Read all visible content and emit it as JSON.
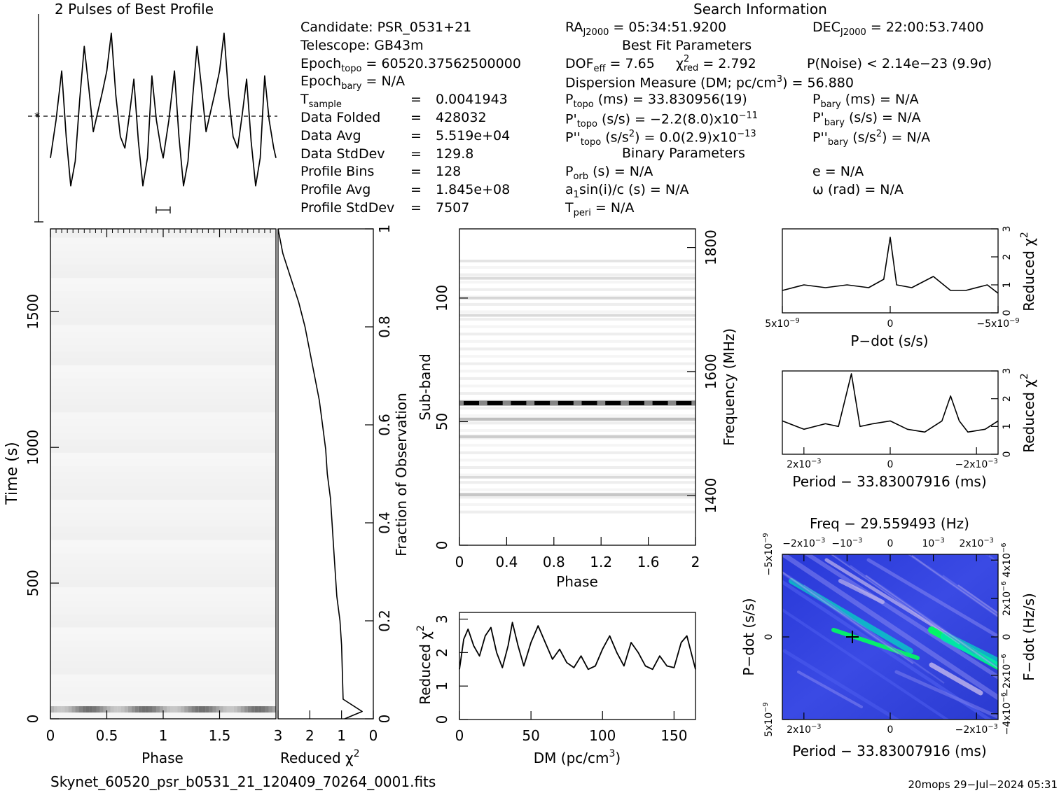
{
  "profile": {
    "title": "2 Pulses of Best Profile",
    "chart_data": {
      "type": "line",
      "title": "2 Pulses of Best Profile",
      "x": [
        0,
        0.05,
        0.1,
        0.14,
        0.18,
        0.22,
        0.26,
        0.3,
        0.34,
        0.38,
        0.42,
        0.46,
        0.5,
        0.54,
        0.58,
        0.62,
        0.66,
        0.7,
        0.74,
        0.78,
        0.82,
        0.86,
        0.9,
        0.94,
        0.98,
        1.0,
        1.05,
        1.1,
        1.14,
        1.18,
        1.22,
        1.26,
        1.3,
        1.34,
        1.38,
        1.42,
        1.46,
        1.5,
        1.54,
        1.58,
        1.62,
        1.66,
        1.7,
        1.74,
        1.78,
        1.82,
        1.86,
        1.9,
        1.94,
        1.98,
        2.0
      ],
      "values": [
        0.22,
        0.45,
        0.75,
        0.35,
        0.05,
        0.2,
        0.58,
        0.9,
        0.65,
        0.38,
        0.5,
        0.62,
        0.75,
        0.98,
        0.6,
        0.35,
        0.28,
        0.48,
        0.7,
        0.32,
        0.05,
        0.22,
        0.72,
        0.45,
        0.28,
        0.22,
        0.45,
        0.75,
        0.35,
        0.05,
        0.2,
        0.58,
        0.9,
        0.65,
        0.38,
        0.5,
        0.62,
        0.75,
        0.98,
        0.6,
        0.35,
        0.28,
        0.48,
        0.7,
        0.32,
        0.05,
        0.22,
        0.72,
        0.45,
        0.28,
        0.22
      ],
      "ylabel": "",
      "xlim": [
        0,
        2
      ]
    }
  },
  "info": {
    "candidate": "Candidate:   PSR_0531+21",
    "telescope": "Telescope:   GB43m",
    "epoch_topo_label": "Epoch",
    "epoch_topo_sub": "topo",
    "epoch_topo_val": " = 60520.37562500000",
    "epoch_bary_label": "Epoch",
    "epoch_bary_sub": "bary",
    "epoch_bary_val": " = N/A",
    "tsample_label": "T",
    "tsample_sub": "sample",
    "tsample_eq": "=",
    "tsample_val": "0.0041943",
    "rows": [
      {
        "label": "Data Folded",
        "eq": "=",
        "val": "428032"
      },
      {
        "label": "Data Avg",
        "eq": "=",
        "val": "5.519e+04"
      },
      {
        "label": "Data StdDev",
        "eq": "=",
        "val": "129.8"
      },
      {
        "label": "Profile Bins",
        "eq": "=",
        "val": "128"
      },
      {
        "label": "Profile Avg",
        "eq": "=",
        "val": "1.845e+08"
      },
      {
        "label": "Profile StdDev",
        "eq": "=",
        "val": "7507"
      }
    ]
  },
  "search": {
    "title": "Search Information",
    "ra_label": "RA",
    "ra_sub": "J2000",
    "ra_val": " = 05:34:51.9200",
    "dec_label": "DEC",
    "dec_sub": "J2000",
    "dec_val": " = 22:00:53.7400",
    "best_fit_title": "Best Fit Parameters",
    "dof_label": "DOF",
    "dof_sub": "eff",
    "dof_val": " = 7.65",
    "chi_label": "χ",
    "chi_sup": "2",
    "chi_sub": "red",
    "chi_val": " = 2.792",
    "pnoise": "P(Noise) < 2.14e−23   (9.9σ)",
    "dm_line": "Dispersion Measure (DM; pc/cm",
    "dm_sup": "3",
    "dm_val": ") = 56.880",
    "ptopo_label": "P",
    "ptopo_sub": "topo",
    "ptopo_val": " (ms) =  33.830956(19)",
    "pbary_label": "P",
    "pbary_sub": "bary",
    "pbary_val": " (ms) = N/A",
    "pdtopo_label": "P'",
    "pdtopo_sub": "topo",
    "pdtopo_val": " (s/s) = −2.2(8.0)x10",
    "pdtopo_exp": "−11",
    "pdbary_label": "P'",
    "pdbary_sub": "bary",
    "pdbary_val": " (s/s) = N/A",
    "pddtopo_label": "P''",
    "pddtopo_sub": "topo",
    "pddtopo_val": " (s/s",
    "pddtopo_sup": "2",
    "pddtopo_val2": ") = 0.0(2.9)x10",
    "pddtopo_exp": "−13",
    "pddbary_label": "P''",
    "pddbary_sub": "bary",
    "pddbary_val": " (s/s",
    "pddbary_sup": "2",
    "pddbary_val2": ") = N/A",
    "binary_title": "Binary Parameters",
    "porb_label": "P",
    "porb_sub": "orb",
    "porb_val": " (s) = N/A",
    "e_line": "e = N/A",
    "a1_label": "a",
    "a1_sub": "1",
    "a1_val": "sin(i)/c (s) = N/A",
    "omega_line": "ω (rad) = N/A",
    "tperi_label": "T",
    "tperi_sub": "peri",
    "tperi_val": " = N/A"
  },
  "time_phase": {
    "xlabel": "Phase",
    "ylabel": "Time (s)",
    "xticks": [
      "0",
      "0.5",
      "1",
      "1.5"
    ],
    "yticks": [
      "0",
      "500",
      "1000",
      "1500"
    ],
    "chart_data": {
      "type": "heatmap",
      "xlabel": "Phase",
      "ylabel": "Time (s)",
      "xlim": [
        0,
        2
      ],
      "ylim": [
        0,
        1805
      ]
    }
  },
  "time_chi": {
    "xlabel": "Reduced χ",
    "xlabel_sup": "2",
    "ylabel": "Fraction of Observation",
    "xticks": [
      "3",
      "2",
      "1",
      "0"
    ],
    "yticks": [
      "0",
      "0.2",
      "0.4",
      "0.6",
      "0.8",
      "1"
    ],
    "chart_data": {
      "type": "line",
      "xlabel": "Reduced χ2",
      "ylabel": "Fraction of Observation",
      "xlim": [
        3,
        0
      ],
      "ylim": [
        0,
        1
      ],
      "x": [
        3.0,
        2.85,
        2.6,
        2.35,
        2.15,
        2.0,
        1.85,
        1.7,
        1.6,
        1.5,
        1.45,
        1.35,
        1.3,
        1.25,
        1.2,
        1.15,
        1.05,
        1.0,
        0.95,
        0.35,
        0.9
      ],
      "y": [
        1.0,
        0.95,
        0.9,
        0.85,
        0.8,
        0.75,
        0.7,
        0.65,
        0.6,
        0.55,
        0.5,
        0.45,
        0.4,
        0.35,
        0.3,
        0.25,
        0.2,
        0.15,
        0.04,
        0.015,
        0.0
      ]
    }
  },
  "subband": {
    "xlabel": "Phase",
    "ylabel": "Sub-band",
    "y2label": "Frequency (MHz)",
    "xticks": [
      "0",
      "0.4",
      "0.8",
      "1.2",
      "1.6",
      "2"
    ],
    "yticks": [
      "0",
      "50",
      "100"
    ],
    "y2ticks": [
      "1400",
      "1600",
      "1800"
    ],
    "chart_data": {
      "type": "heatmap",
      "xlabel": "Phase",
      "ylabel": "Sub-band",
      "xlim": [
        0,
        2
      ],
      "ylim": [
        0,
        128
      ],
      "y2lim": [
        1320,
        1830
      ]
    }
  },
  "dm": {
    "xlabel": "DM (pc/cm",
    "xlabel_sup": "3",
    "xlabel_end": ")",
    "ylabel": "Reduced χ",
    "ylabel_sup": "2",
    "xticks": [
      "0",
      "50",
      "100",
      "150"
    ],
    "yticks": [
      "0",
      "1",
      "2",
      "3"
    ],
    "chart_data": {
      "type": "line",
      "xlabel": "DM (pc/cm3)",
      "ylabel": "Reduced χ2",
      "xlim": [
        0,
        165
      ],
      "ylim": [
        0,
        3.2
      ],
      "x": [
        0,
        3,
        6,
        10,
        14,
        18,
        22,
        26,
        30,
        34,
        37,
        41,
        45,
        50,
        55,
        60,
        65,
        70,
        75,
        80,
        85,
        90,
        95,
        100,
        105,
        110,
        115,
        120,
        125,
        130,
        135,
        140,
        145,
        150,
        155,
        159,
        165
      ],
      "y": [
        1.5,
        2.4,
        2.7,
        2.2,
        1.9,
        2.5,
        2.75,
        2.0,
        1.55,
        2.2,
        2.9,
        2.2,
        1.6,
        2.3,
        2.8,
        2.3,
        1.8,
        2.1,
        1.7,
        1.55,
        1.9,
        1.5,
        1.6,
        2.1,
        2.5,
        2.0,
        1.6,
        2.3,
        2.0,
        1.6,
        1.5,
        1.9,
        1.6,
        1.55,
        2.3,
        2.5,
        1.5
      ]
    }
  },
  "pdot_chi": {
    "xlabel": "P−dot (s/s)",
    "ylabel": "Reduced χ",
    "ylabel_sup": "2",
    "xticks": [
      "5x10",
      "0",
      "−5x10"
    ],
    "xtick_exp": "−9",
    "yticks": [
      "0",
      "1",
      "2",
      "3"
    ],
    "chart_data": {
      "type": "line",
      "xlabel": "P−dot (s/s)",
      "ylabel": "Reduced χ2",
      "xlim": [
        5e-09,
        -5e-09
      ],
      "ylim": [
        0,
        3
      ],
      "x": [
        5e-09,
        4e-09,
        3e-09,
        2e-09,
        1e-09,
        3e-10,
        0,
        -3e-10,
        -1e-09,
        -2e-09,
        -2.8e-09,
        -3.5e-09,
        -4.5e-09,
        -5e-09
      ],
      "y": [
        0.8,
        1.0,
        0.9,
        1.0,
        0.9,
        1.2,
        2.7,
        1.0,
        0.9,
        1.3,
        0.8,
        0.8,
        1.0,
        0.7
      ]
    }
  },
  "period_chi": {
    "xlabel": "Period − 33.83007916 (ms)",
    "ylabel": "Reduced χ",
    "ylabel_sup": "2",
    "xticks": [
      "2x10",
      "0",
      "−2x10"
    ],
    "xtick_exp": "−3",
    "yticks": [
      "0",
      "1",
      "2",
      "3"
    ],
    "chart_data": {
      "type": "line",
      "xlabel": "Period − 33.83007916 (ms)",
      "ylabel": "Reduced χ2",
      "xlim": [
        0.0025,
        -0.0025
      ],
      "ylim": [
        0,
        3
      ],
      "x": [
        0.0025,
        0.002,
        0.0015,
        0.0012,
        0.0009,
        0.0007,
        0.0004,
        0,
        -0.0004,
        -0.0008,
        -0.0012,
        -0.0014,
        -0.0016,
        -0.0018,
        -0.0022,
        -0.0025
      ],
      "y": [
        1.2,
        0.9,
        1.1,
        1.0,
        2.9,
        1.0,
        1.1,
        1.2,
        0.9,
        0.8,
        1.2,
        2.1,
        1.2,
        0.8,
        0.9,
        1.2
      ]
    }
  },
  "ppdot": {
    "title": "Freq − 29.559493 (Hz)",
    "xlabel": "Period − 33.83007916 (ms)",
    "ylabel": "P−dot (s/s)",
    "y2label": "F−dot (Hz/s)",
    "xticks": [
      "2x10",
      "0",
      "−2x10"
    ],
    "xtick_exp": "−3",
    "topticks": [
      "−2x10",
      "−10",
      "0",
      "10",
      "2x10"
    ],
    "topticks_exp": [
      "−3",
      "−3",
      "",
      "−3",
      "−3"
    ],
    "yticks": [
      "5x10",
      "0",
      "−5x10"
    ],
    "ytick_exp": "−9",
    "y2ticks": [
      "−4x10",
      "−2x10",
      "0",
      "2x10",
      "4x10"
    ],
    "y2tick_exp": "−6",
    "chart_data": {
      "type": "heatmap",
      "xlabel": "Period − 33.83007916 (ms)",
      "ylabel": "P−dot (s/s)",
      "xlim": [
        0.0025,
        -0.0025
      ],
      "ylim": [
        5e-09,
        -5e-09
      ],
      "colors": [
        "#1a2bd6",
        "#4f5ff0",
        "#8c8cf2",
        "#d8c8f0",
        "#00e0c0",
        "#00ff60"
      ]
    }
  },
  "footer": {
    "filename": "Skynet_60520_psr_b0531_21_120409_70264_0001.fits",
    "stamp": "20mops 29−Jul−2024 05:31"
  }
}
